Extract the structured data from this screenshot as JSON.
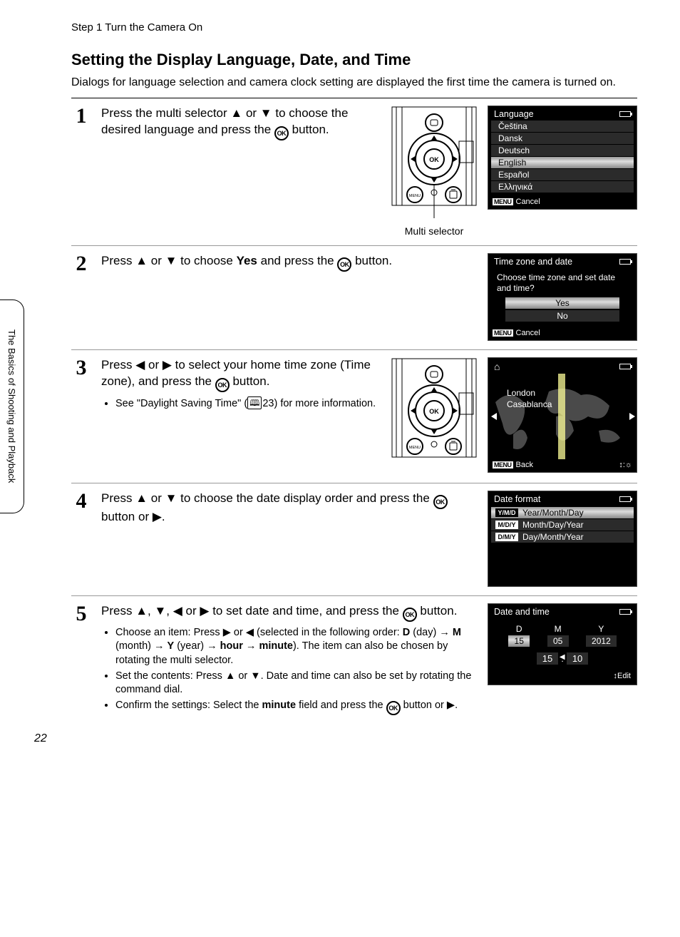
{
  "page": {
    "header": "Step 1 Turn the Camera On",
    "title": "Setting the Display Language, Date, and Time",
    "intro": "Dialogs for language selection and camera clock setting are displayed the first time the camera is turned on.",
    "side_tab": "The Basics of Shooting and Playback",
    "page_number": "22",
    "multi_selector_caption": "Multi selector"
  },
  "glyphs": {
    "up": "▲",
    "down": "▼",
    "left": "◀",
    "right": "▶",
    "ok": "OK",
    "arrow": "→",
    "home": "⌂",
    "edit_icon": "↕",
    "dst_icon": "↕:☼",
    "menu": "MENU",
    "book": "📖"
  },
  "steps": {
    "s1": {
      "num": "1",
      "text_a": "Press the multi selector ",
      "text_b": " or ",
      "text_c": " to choose the desired language and press the ",
      "text_d": " button."
    },
    "s2": {
      "num": "2",
      "text_a": "Press ",
      "text_b": " or ",
      "text_c": " to choose ",
      "bold": "Yes",
      "text_d": " and press the ",
      "text_e": " button."
    },
    "s3": {
      "num": "3",
      "text_a": "Press ",
      "text_b": " or ",
      "text_c": " to select your home time zone (Time zone), and press the ",
      "text_d": " button.",
      "sub_a": "See \"Daylight Saving Time\" (",
      "sub_pageref": "23",
      "sub_b": ") for more information."
    },
    "s4": {
      "num": "4",
      "text_a": "Press ",
      "text_b": " or ",
      "text_c": " to choose the date display order and press the ",
      "text_d": " button or ",
      "text_e": "."
    },
    "s5": {
      "num": "5",
      "text_a": "Press ",
      "text_b": ", ",
      "text_c": ", ",
      "text_d": " or ",
      "text_e": " to set date and time, and press the ",
      "text_f": " button.",
      "bullet1_a": "Choose an item: Press ",
      "bullet1_b": " or ",
      "bullet1_c": " (selected in the following order: ",
      "bullet1_D": "D",
      "bullet1_day": " (day) ",
      "bullet1_M": "M",
      "bullet1_month": " (month) ",
      "bullet1_Y": "Y",
      "bullet1_year": " (year) ",
      "bullet1_hour": "hour",
      "bullet1_min": "minute",
      "bullet1_end": "). The item can also be chosen by rotating the multi selector.",
      "bullet2_a": "Set the contents: Press ",
      "bullet2_b": " or ",
      "bullet2_c": ". Date and time can also be set by rotating the command dial.",
      "bullet3_a": "Confirm the settings: Select the ",
      "bullet3_min": "minute",
      "bullet3_b": " field and press the ",
      "bullet3_c": " button or ",
      "bullet3_d": "."
    }
  },
  "lcd": {
    "lang": {
      "title": "Language",
      "items": [
        "Čeština",
        "Dansk",
        "Deutsch",
        "English",
        "Español",
        "Ελληνικά"
      ],
      "highlight_index": 3,
      "footer": "Cancel"
    },
    "tz_date": {
      "title": "Time zone and date",
      "question": "Choose time zone and set date and time?",
      "yes": "Yes",
      "no": "No",
      "footer": "Cancel"
    },
    "map": {
      "city1": "London",
      "city2": "Casablanca",
      "footer": "Back"
    },
    "date_format": {
      "title": "Date format",
      "rows": [
        {
          "badge": "Y/M/D",
          "label": "Year/Month/Day"
        },
        {
          "badge": "M/D/Y",
          "label": "Month/Day/Year"
        },
        {
          "badge": "D/M/Y",
          "label": "Day/Month/Year"
        }
      ],
      "highlight_index": 0
    },
    "date_time": {
      "title": "Date and time",
      "labels": {
        "d": "D",
        "m": "M",
        "y": "Y"
      },
      "values": {
        "d": "15",
        "m": "05",
        "y": "2012",
        "hh": "15",
        "mm": "10"
      },
      "edit": "Edit",
      "colon": ":"
    }
  },
  "colors": {
    "lcd_bg": "#000000",
    "lcd_text": "#ffffff",
    "highlight_grad_top": "#999999",
    "highlight_grad_mid": "#dddddd",
    "highlight_grad_bot": "#888888",
    "item_bg": "#2b2b2b"
  }
}
